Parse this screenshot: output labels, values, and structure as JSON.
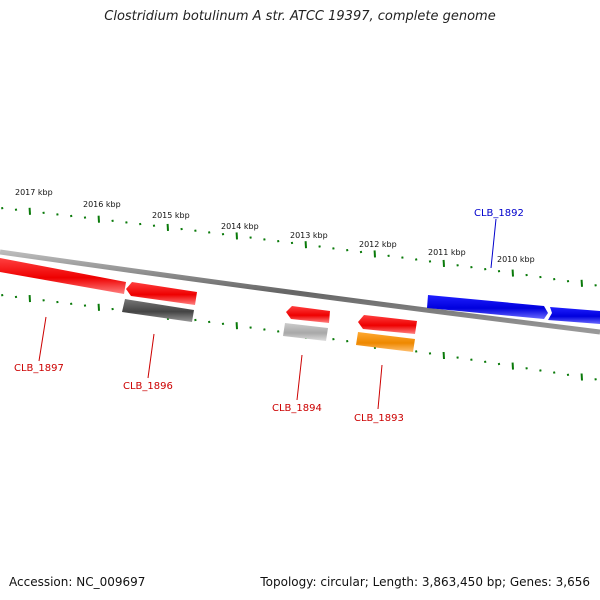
{
  "title": "Clostridium botulinum A str. ATCC 19397, complete genome",
  "footer": {
    "accession": "Accession: NC_009697",
    "info": "Topology: circular; Length: 3,863,450 bp; Genes: 3,656"
  },
  "colors": {
    "forward_gene": "#0000ee",
    "reverse_gene": "#ee0000",
    "gray_feature": "#555555",
    "light_gray_feature": "#aaaaaa",
    "orange_feature": "#ff8c00",
    "tick": "#0a7a0a",
    "backbone": "#777777",
    "forward_label": "#0000cc",
    "reverse_label": "#cc0000"
  },
  "scale_labels": [
    "2017 kbp",
    "2016 kbp",
    "2015 kbp",
    "2014 kbp",
    "2013 kbp",
    "2012 kbp",
    "2011 kbp",
    "2010 kbp"
  ],
  "gene_labels": [
    {
      "id": "CLB_1892",
      "text": "CLB_1892",
      "strand": "forward"
    },
    {
      "id": "CLB_1893",
      "text": "CLB_1893",
      "strand": "reverse"
    },
    {
      "id": "CLB_1894",
      "text": "CLB_1894",
      "strand": "reverse"
    },
    {
      "id": "CLB_1896",
      "text": "CLB_1896",
      "strand": "reverse"
    },
    {
      "id": "CLB_1897",
      "text": "CLB_1897",
      "strand": "reverse"
    }
  ]
}
